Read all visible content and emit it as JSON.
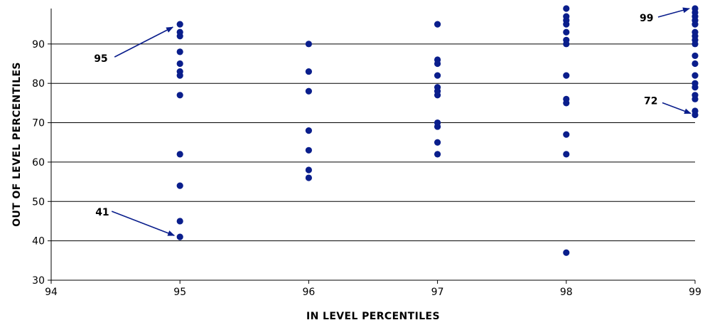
{
  "chart_data": {
    "type": "scatter",
    "xlabel": "IN LEVEL PERCENTILES",
    "ylabel": "OUT OF LEVEL PERCENTILES",
    "xlim": [
      94,
      99
    ],
    "ylim": [
      30,
      99
    ],
    "xticks": [
      94,
      95,
      96,
      97,
      98,
      99
    ],
    "yticks": [
      30,
      40,
      50,
      60,
      70,
      80,
      90
    ],
    "grid": "horizontal",
    "marker_color": "#0A1E8C",
    "points": [
      {
        "x": 95,
        "y": 95
      },
      {
        "x": 95,
        "y": 93
      },
      {
        "x": 95,
        "y": 92
      },
      {
        "x": 95,
        "y": 88
      },
      {
        "x": 95,
        "y": 85
      },
      {
        "x": 95,
        "y": 83
      },
      {
        "x": 95,
        "y": 82
      },
      {
        "x": 95,
        "y": 77
      },
      {
        "x": 95,
        "y": 62
      },
      {
        "x": 95,
        "y": 54
      },
      {
        "x": 95,
        "y": 45
      },
      {
        "x": 95,
        "y": 41
      },
      {
        "x": 96,
        "y": 90
      },
      {
        "x": 96,
        "y": 83
      },
      {
        "x": 96,
        "y": 78
      },
      {
        "x": 96,
        "y": 68
      },
      {
        "x": 96,
        "y": 63
      },
      {
        "x": 96,
        "y": 58
      },
      {
        "x": 96,
        "y": 56
      },
      {
        "x": 97,
        "y": 95
      },
      {
        "x": 97,
        "y": 86
      },
      {
        "x": 97,
        "y": 85
      },
      {
        "x": 97,
        "y": 82
      },
      {
        "x": 97,
        "y": 79
      },
      {
        "x": 97,
        "y": 78
      },
      {
        "x": 97,
        "y": 77
      },
      {
        "x": 97,
        "y": 70
      },
      {
        "x": 97,
        "y": 69
      },
      {
        "x": 97,
        "y": 65
      },
      {
        "x": 97,
        "y": 62
      },
      {
        "x": 98,
        "y": 99
      },
      {
        "x": 98,
        "y": 97
      },
      {
        "x": 98,
        "y": 96
      },
      {
        "x": 98,
        "y": 95
      },
      {
        "x": 98,
        "y": 93
      },
      {
        "x": 98,
        "y": 91
      },
      {
        "x": 98,
        "y": 90
      },
      {
        "x": 98,
        "y": 82
      },
      {
        "x": 98,
        "y": 76
      },
      {
        "x": 98,
        "y": 75
      },
      {
        "x": 98,
        "y": 67
      },
      {
        "x": 98,
        "y": 62
      },
      {
        "x": 98,
        "y": 37
      },
      {
        "x": 99,
        "y": 99
      },
      {
        "x": 99,
        "y": 98
      },
      {
        "x": 99,
        "y": 97
      },
      {
        "x": 99,
        "y": 96
      },
      {
        "x": 99,
        "y": 95
      },
      {
        "x": 99,
        "y": 93
      },
      {
        "x": 99,
        "y": 92
      },
      {
        "x": 99,
        "y": 91
      },
      {
        "x": 99,
        "y": 90
      },
      {
        "x": 99,
        "y": 87
      },
      {
        "x": 99,
        "y": 85
      },
      {
        "x": 99,
        "y": 82
      },
      {
        "x": 99,
        "y": 80
      },
      {
        "x": 99,
        "y": 79
      },
      {
        "x": 99,
        "y": 77
      },
      {
        "x": 99,
        "y": 76
      },
      {
        "x": 99,
        "y": 73
      },
      {
        "x": 99,
        "y": 72
      }
    ],
    "annotations": [
      {
        "text": "95",
        "point": {
          "x": 95,
          "y": 95
        }
      },
      {
        "text": "41",
        "point": {
          "x": 95,
          "y": 41
        }
      },
      {
        "text": "99",
        "point": {
          "x": 99,
          "y": 99
        }
      },
      {
        "text": "72",
        "point": {
          "x": 99,
          "y": 72
        }
      }
    ]
  }
}
